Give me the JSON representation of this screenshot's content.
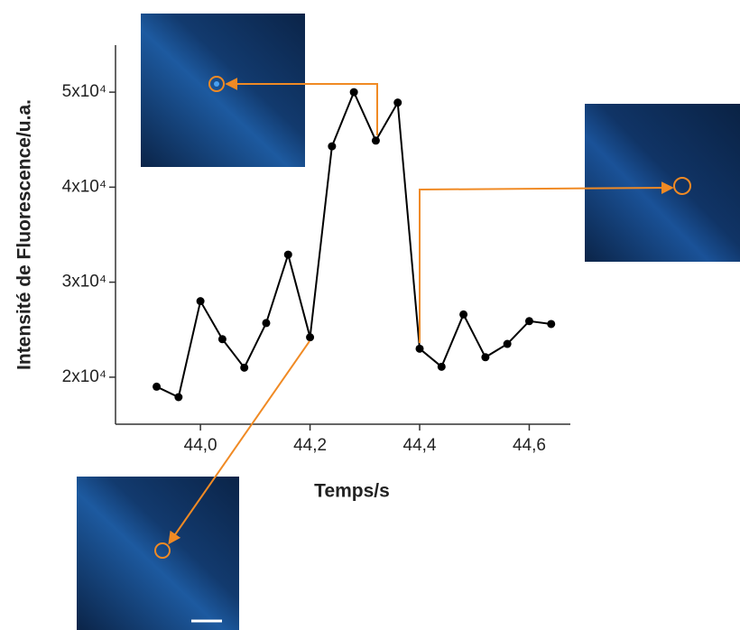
{
  "chart_data": {
    "type": "line",
    "y_label": "Intensité de Fluorescence/u.a.",
    "x_label": "Temps/s",
    "x": [
      43.92,
      43.96,
      44.0,
      44.04,
      44.08,
      44.12,
      44.16,
      44.2,
      44.24,
      44.28,
      44.32,
      44.36,
      44.4,
      44.44,
      44.48,
      44.52,
      44.56,
      44.6,
      44.64
    ],
    "values": [
      19000,
      17900,
      28000,
      24000,
      21000,
      25700,
      32900,
      24200,
      44300,
      50000,
      44900,
      48900,
      23000,
      21100,
      26600,
      22100,
      23500,
      25900,
      25600
    ],
    "color": "#000000",
    "xlim": [
      43.845,
      44.675
    ],
    "xticks": [
      {
        "value": 44.0,
        "label": "44,0"
      },
      {
        "value": 44.2,
        "label": "44,2"
      },
      {
        "value": 44.4,
        "label": "44,4"
      },
      {
        "value": 44.6,
        "label": "44,6"
      }
    ],
    "ylim": [
      15050,
      54950
    ],
    "yticks": [
      {
        "value": 20000,
        "label": "2x10⁴"
      },
      {
        "value": 30000,
        "label": "3x10⁴"
      },
      {
        "value": 40000,
        "label": "4x10⁴"
      },
      {
        "value": 50000,
        "label": "5x10⁴"
      }
    ]
  }
}
